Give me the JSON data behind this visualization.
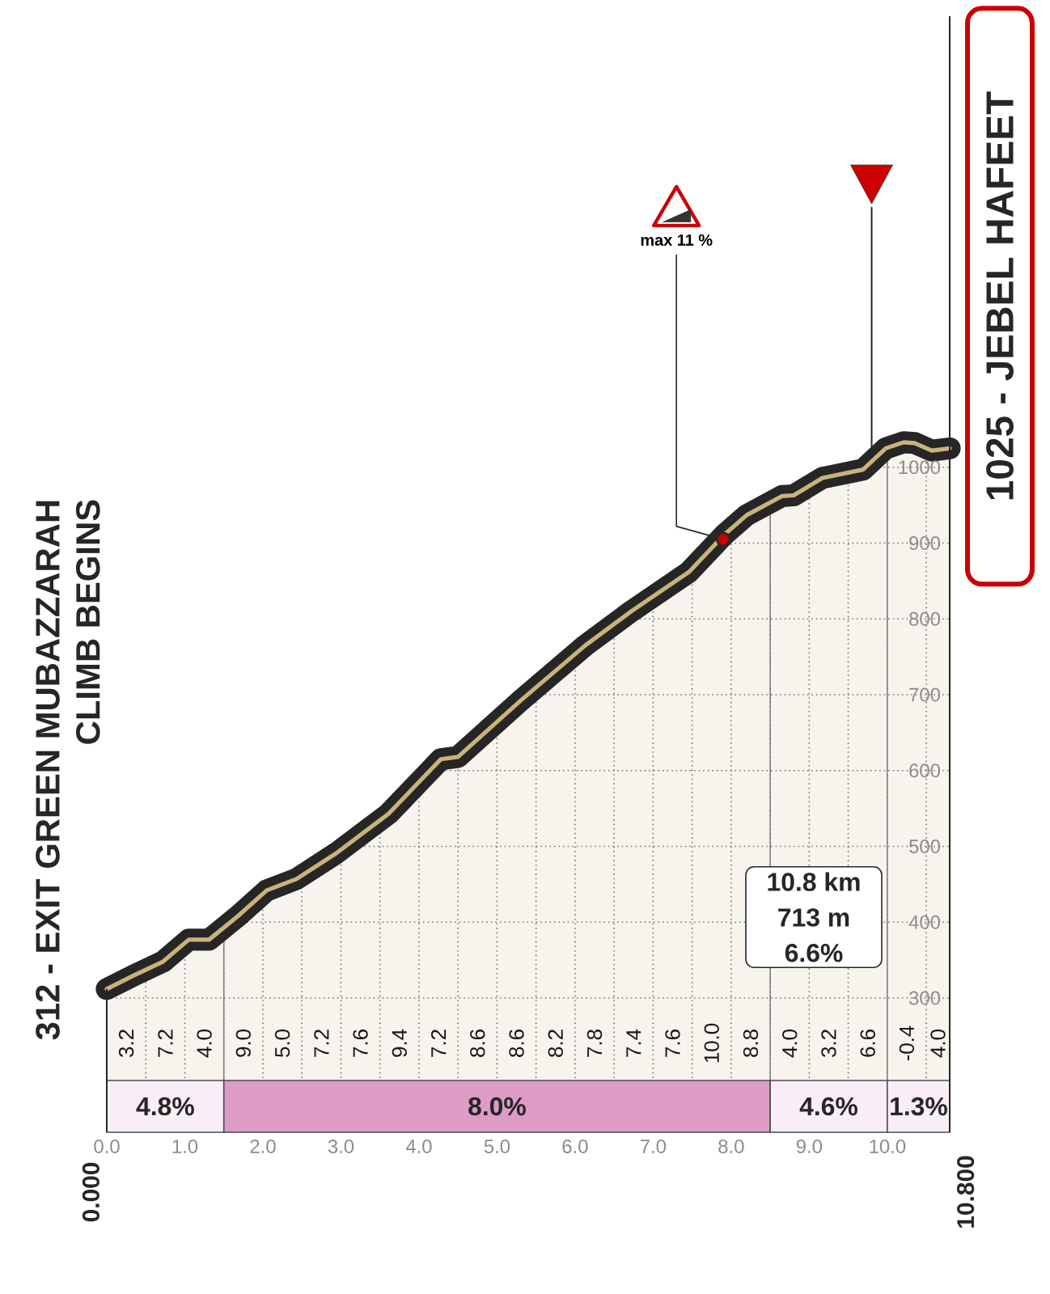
{
  "chart_data": {
    "type": "area",
    "x": [
      0,
      0.35,
      0.72,
      1.05,
      1.31,
      1.68,
      2.05,
      2.43,
      2.94,
      3.61,
      4.28,
      4.5,
      5.31,
      6.13,
      6.72,
      7.46,
      7.91,
      8.2,
      8.65,
      8.8,
      9.17,
      9.69,
      9.98,
      10.21,
      10.35,
      10.57,
      10.8
    ],
    "series": [
      {
        "color": "#c8b37c",
        "values": [
          312,
          330,
          348,
          377,
          377,
          408,
          442,
          457,
          491,
          543,
          615,
          618,
          693,
          765,
          810,
          862,
          911,
          937,
          962,
          963,
          986,
          997,
          1025,
          1033,
          1032,
          1022,
          1025
        ]
      }
    ],
    "xlim": [
      0,
      10.8
    ],
    "ylim": [
      123,
      1595
    ],
    "xticks": [
      {
        "value": 0,
        "label": "0.0"
      },
      {
        "value": 0.5,
        "label": null
      },
      {
        "value": 1,
        "label": "1.0"
      },
      {
        "value": 1.5,
        "label": null
      },
      {
        "value": 2,
        "label": "2.0"
      },
      {
        "value": 2.5,
        "label": null
      },
      {
        "value": 3,
        "label": "3.0"
      },
      {
        "value": 3.5,
        "label": null
      },
      {
        "value": 4,
        "label": "4.0"
      },
      {
        "value": 4.5,
        "label": null
      },
      {
        "value": 5,
        "label": "5.0"
      },
      {
        "value": 5.5,
        "label": null
      },
      {
        "value": 6,
        "label": "6.0"
      },
      {
        "value": 6.5,
        "label": null
      },
      {
        "value": 7,
        "label": "7.0"
      },
      {
        "value": 7.5,
        "label": null
      },
      {
        "value": 8,
        "label": "8.0"
      },
      {
        "value": 8.5,
        "label": null
      },
      {
        "value": 9,
        "label": "9.0"
      },
      {
        "value": 9.5,
        "label": null
      },
      {
        "value": 10,
        "label": "10.0"
      },
      {
        "value": 10.5,
        "label": null
      }
    ],
    "yticks": [
      300,
      400,
      500,
      600,
      700,
      800,
      900,
      1000
    ],
    "grid": true,
    "bands": [
      {
        "axis": "x",
        "from": 0,
        "to": 1.5,
        "label": "4.8%",
        "color": "#f9eef6"
      },
      {
        "axis": "x",
        "from": 1.5,
        "to": 8.5,
        "label": "8.0%",
        "color": "#dc9cc5"
      },
      {
        "axis": "x",
        "from": 8.5,
        "to": 10,
        "label": "4.6%",
        "color": "#f9eef6"
      },
      {
        "axis": "x",
        "from": 10,
        "to": 10.8,
        "label": "1.3%",
        "color": "#f9eef6"
      }
    ],
    "ref_lines": [
      {
        "axis": "x",
        "value": 9.8,
        "color": "#262626"
      }
    ],
    "annotations": [
      {
        "text": "312 - EXIT GREEN MUBAZZARAH",
        "x": 0,
        "y": 312
      },
      "CLIMB BEGINS",
      {
        "text": "1025 - JEBEL HAFEET",
        "x": 10.8,
        "y": 1025
      },
      {
        "text": "max 11 %",
        "x": 7.9,
        "y": 905
      },
      "10.8 km",
      "713 m",
      "6.6%",
      "0.000",
      "10.800",
      "3.2",
      "7.2",
      "4.0",
      "9.0",
      "5.0",
      "7.2",
      "7.6",
      "9.4",
      "7.2",
      "8.6",
      "8.6",
      "8.2",
      "7.8",
      "7.4",
      "7.6",
      "10.0",
      "8.8",
      "4.0",
      "3.2",
      "6.6",
      "-0.4",
      "4.0"
    ]
  }
}
